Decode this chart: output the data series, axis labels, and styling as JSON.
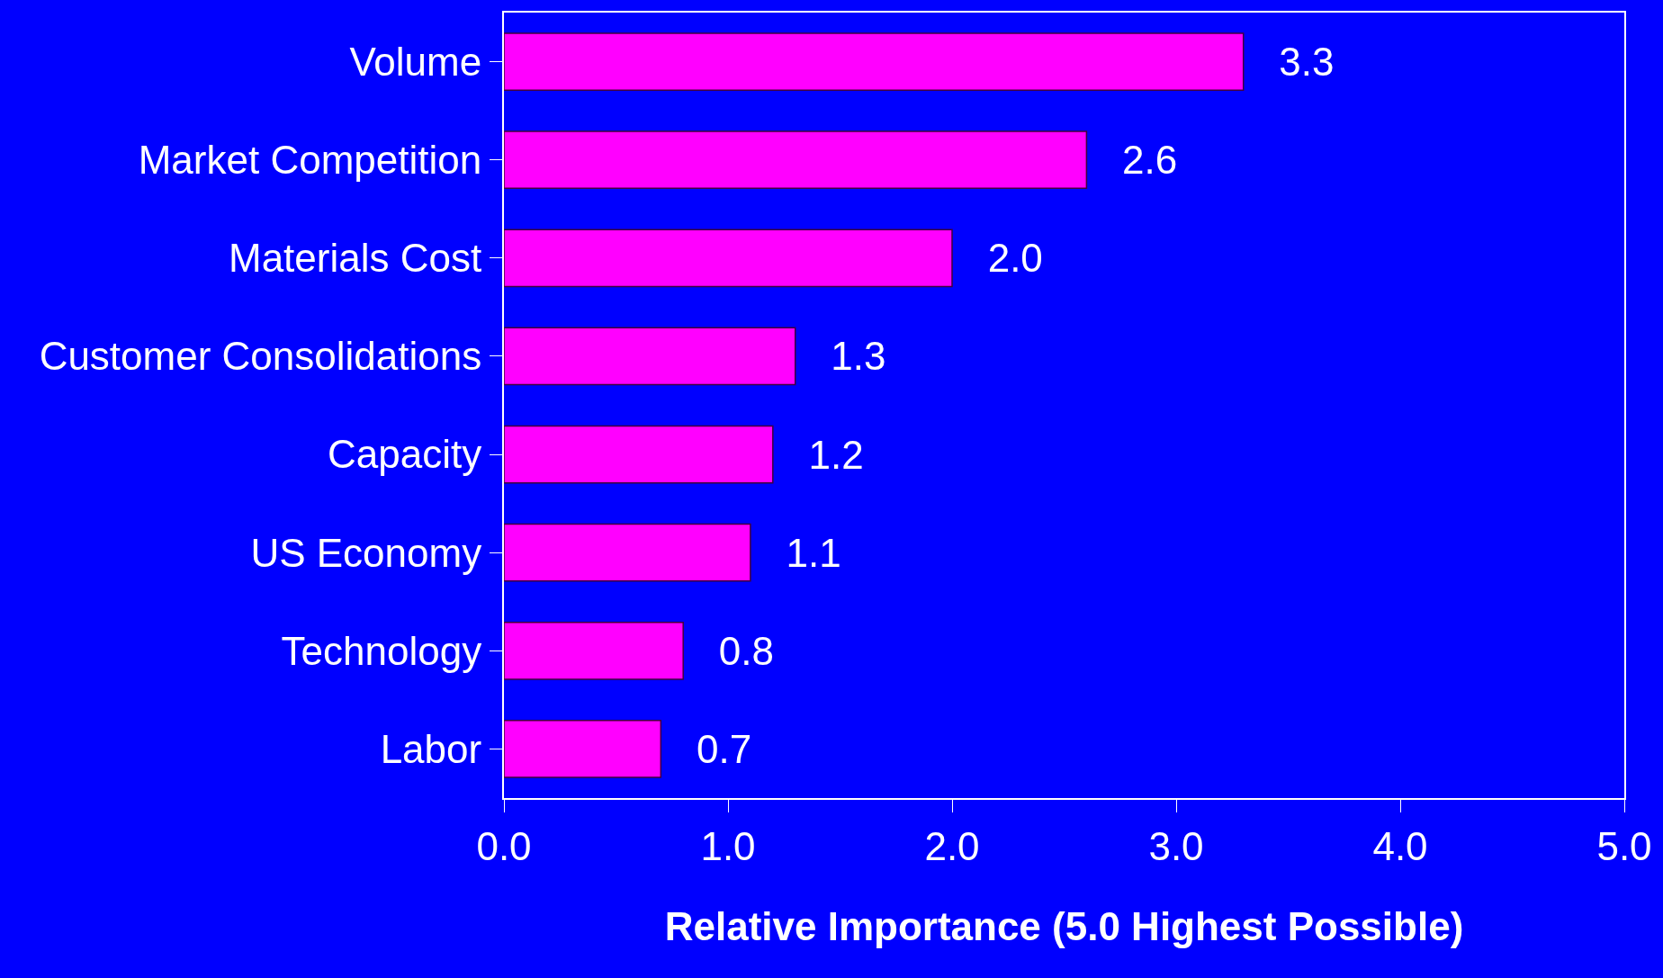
{
  "chart_data": {
    "type": "bar",
    "orientation": "horizontal",
    "xlabel": "Relative Importance (5.0 Highest Possible)",
    "categories": [
      "Volume",
      "Market Competition",
      "Materials Cost",
      "Customer Consolidations",
      "Capacity",
      "US Economy",
      "Technology",
      "Labor"
    ],
    "values": [
      3.3,
      2.6,
      2.0,
      1.3,
      1.2,
      1.1,
      0.8,
      0.7
    ],
    "value_labels": [
      "3.3",
      "2.6",
      "2.0",
      "1.3",
      "1.2",
      "1.1",
      "0.8",
      "0.7"
    ],
    "color": "#ff00ff",
    "grid": false,
    "legend": false,
    "xlim": [
      0,
      5
    ],
    "xticks": [
      {
        "value": 0,
        "label": "0.0"
      },
      {
        "value": 1,
        "label": "1.0"
      },
      {
        "value": 2,
        "label": "2.0"
      },
      {
        "value": 3,
        "label": "3.0"
      },
      {
        "value": 4,
        "label": "4.0"
      },
      {
        "value": 5,
        "label": "5.0"
      }
    ]
  }
}
